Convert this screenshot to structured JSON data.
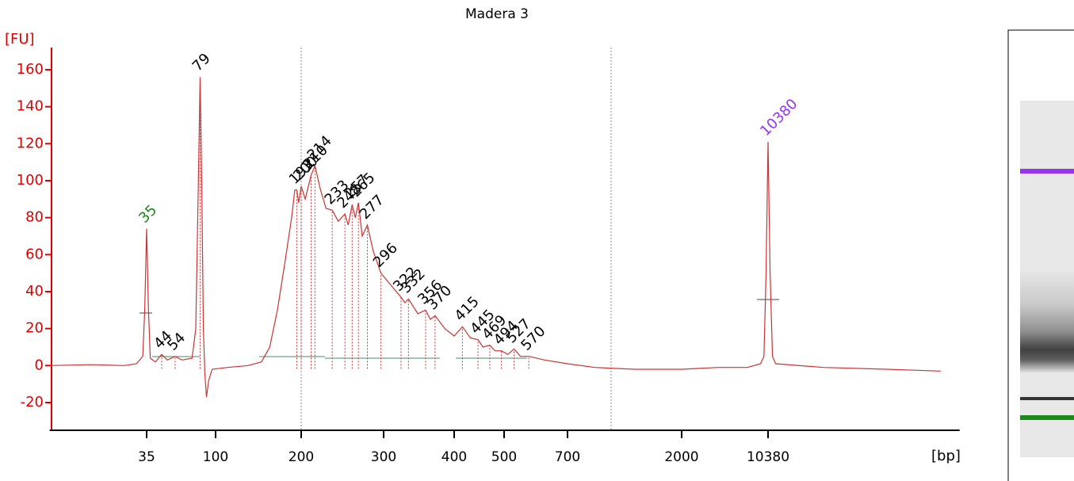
{
  "chart_data": {
    "type": "line",
    "title": "Madera 3",
    "y_label": "[FU]",
    "x_label": "[bp]",
    "color": "#cc3333",
    "axis_color": "#dd0000",
    "x": [
      8,
      15,
      25,
      30,
      33,
      34,
      35,
      36,
      37,
      40,
      44,
      48,
      54,
      60,
      70,
      74,
      77,
      79,
      81,
      83,
      85,
      87,
      90,
      95,
      110,
      130,
      145,
      155,
      165,
      175,
      185,
      190,
      193,
      196,
      200,
      204,
      210,
      214,
      220,
      226,
      233,
      240,
      248,
      252,
      257,
      261,
      265,
      270,
      277,
      285,
      296,
      310,
      322,
      327,
      332,
      345,
      356,
      363,
      370,
      385,
      400,
      415,
      430,
      445,
      455,
      469,
      480,
      494,
      510,
      527,
      545,
      570,
      620,
      700,
      900,
      1300,
      2000,
      4000,
      7000,
      9000,
      9600,
      10000,
      10380,
      10800,
      11300,
      12000,
      30000,
      100000,
      280000
    ],
    "values": [
      0,
      0.5,
      0,
      1,
      5,
      30,
      74,
      30,
      4,
      2,
      6,
      3,
      5,
      3,
      4,
      20,
      100,
      156,
      100,
      20,
      -5,
      -17,
      -8,
      -2,
      -1,
      0,
      2,
      10,
      30,
      55,
      80,
      95,
      95,
      88,
      97,
      90,
      103,
      108,
      95,
      85,
      84,
      78,
      82,
      76,
      87,
      80,
      88,
      70,
      76,
      62,
      50,
      43,
      37,
      34,
      36,
      28,
      30,
      25,
      27,
      20,
      16,
      21,
      15,
      14,
      10,
      11,
      8,
      8,
      6,
      9,
      5,
      5,
      3,
      1,
      -1,
      -2,
      -2,
      -1,
      -1,
      1,
      5,
      50,
      121,
      50,
      5,
      1,
      -1,
      -2,
      -3
    ],
    "xlim": [
      8,
      400000
    ],
    "xticks": [
      35,
      100,
      200,
      300,
      400,
      500,
      700,
      2000,
      10380
    ],
    "ylim": [
      -35,
      172
    ],
    "yticks": [
      -20,
      0,
      20,
      40,
      60,
      80,
      100,
      120,
      140,
      160
    ],
    "markers": [
      {
        "size": 35,
        "height": 74,
        "color": "#1a8a1a"
      },
      {
        "size": 10380,
        "height": 121,
        "color": "#9933ee"
      }
    ],
    "peak_color": "#000000",
    "peaks": [
      {
        "size": 44,
        "height": 6
      },
      {
        "size": 54,
        "height": 5
      },
      {
        "size": 79,
        "height": 156
      },
      {
        "size": 193,
        "height": 95
      },
      {
        "size": 200,
        "height": 97
      },
      {
        "size": 210,
        "height": 103
      },
      {
        "size": 214,
        "height": 108
      },
      {
        "size": 233,
        "height": 84
      },
      {
        "size": 248,
        "height": 82
      },
      {
        "size": 257,
        "height": 87
      },
      {
        "size": 265,
        "height": 88
      },
      {
        "size": 277,
        "height": 76
      },
      {
        "size": 296,
        "height": 50
      },
      {
        "size": 322,
        "height": 37
      },
      {
        "size": 332,
        "height": 36
      },
      {
        "size": 356,
        "height": 30
      },
      {
        "size": 370,
        "height": 27
      },
      {
        "size": 415,
        "height": 21
      },
      {
        "size": 445,
        "height": 14
      },
      {
        "size": 469,
        "height": 11
      },
      {
        "size": 494,
        "height": 8
      },
      {
        "size": 527,
        "height": 9
      },
      {
        "size": 570,
        "height": 5
      }
    ]
  }
}
